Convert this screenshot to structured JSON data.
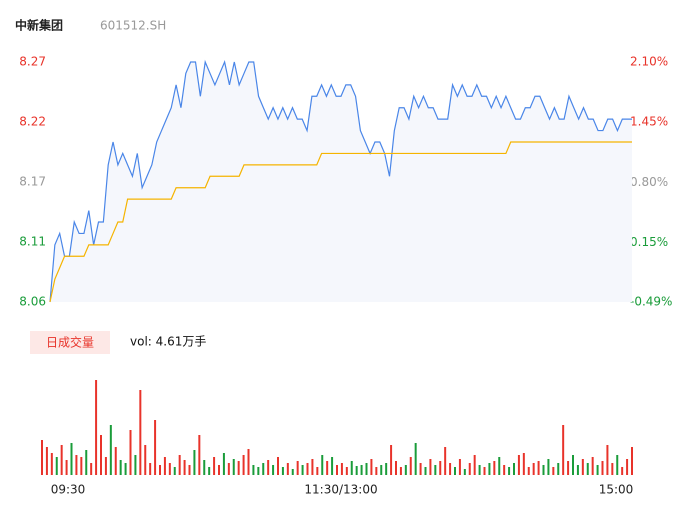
{
  "chart_data": [
    {
      "type": "line",
      "title": "中新集团",
      "subtitle": "601512.SH",
      "xlim": [
        0,
        240
      ],
      "xticks": [
        {
          "value": 0,
          "label": "09:30"
        },
        {
          "value": 120,
          "label": "11:30/13:00"
        },
        {
          "value": 240,
          "label": "15:00"
        }
      ],
      "ylim": [
        8.06,
        8.27
      ],
      "yticks": [
        8.06,
        {
          "value": 8.1125,
          "label": "8.11"
        },
        {
          "value": 8.165,
          "label": "8.17"
        },
        {
          "value": 8.2175,
          "label": "8.22"
        },
        8.27
      ],
      "ytick_colors": [
        "#1a9c3a",
        "#1a9c3a",
        "#999999",
        "#e8332a",
        "#e8332a"
      ],
      "y2lim": [
        -0.49,
        2.1
      ],
      "y2ticks": [
        {
          "value": -0.49,
          "label": "-0.49%"
        },
        {
          "value": 0.15,
          "label": "0.15%"
        },
        {
          "value": 0.8,
          "label": "0.80%"
        },
        {
          "value": 1.45,
          "label": "1.45%"
        },
        {
          "value": 2.1,
          "label": "2.10%"
        }
      ],
      "x": [
        0,
        2,
        4,
        6,
        8,
        10,
        12,
        14,
        16,
        18,
        20,
        22,
        24,
        26,
        28,
        30,
        32,
        34,
        36,
        38,
        40,
        42,
        44,
        46,
        48,
        50,
        52,
        54,
        56,
        58,
        60,
        62,
        64,
        66,
        68,
        70,
        72,
        74,
        76,
        78,
        80,
        82,
        84,
        86,
        88,
        90,
        92,
        94,
        96,
        98,
        100,
        102,
        104,
        106,
        108,
        110,
        112,
        114,
        116,
        118,
        120,
        122,
        124,
        126,
        128,
        130,
        132,
        134,
        136,
        138,
        140,
        142,
        144,
        146,
        148,
        150,
        152,
        154,
        156,
        158,
        160,
        162,
        164,
        166,
        168,
        170,
        172,
        174,
        176,
        178,
        180,
        182,
        184,
        186,
        188,
        190,
        192,
        194,
        196,
        198,
        200,
        202,
        204,
        206,
        208,
        210,
        212,
        214,
        216,
        218,
        220,
        222,
        224,
        226,
        228,
        230,
        232,
        234,
        236,
        238,
        240
      ],
      "series": [
        {
          "name": "price",
          "color": "#4a86e8",
          "values": [
            8.06,
            8.11,
            8.12,
            8.1,
            8.1,
            8.13,
            8.12,
            8.12,
            8.14,
            8.11,
            8.13,
            8.13,
            8.18,
            8.2,
            8.18,
            8.19,
            8.18,
            8.17,
            8.19,
            8.16,
            8.17,
            8.18,
            8.2,
            8.21,
            8.22,
            8.23,
            8.25,
            8.23,
            8.26,
            8.27,
            8.27,
            8.24,
            8.27,
            8.26,
            8.25,
            8.26,
            8.27,
            8.25,
            8.27,
            8.25,
            8.26,
            8.27,
            8.27,
            8.24,
            8.23,
            8.22,
            8.23,
            8.22,
            8.23,
            8.22,
            8.23,
            8.22,
            8.22,
            8.21,
            8.24,
            8.24,
            8.25,
            8.24,
            8.25,
            8.24,
            8.24,
            8.25,
            8.25,
            8.24,
            8.21,
            8.2,
            8.19,
            8.2,
            8.2,
            8.19,
            8.17,
            8.21,
            8.23,
            8.23,
            8.22,
            8.24,
            8.23,
            8.24,
            8.23,
            8.23,
            8.22,
            8.22,
            8.22,
            8.25,
            8.24,
            8.25,
            8.24,
            8.24,
            8.25,
            8.24,
            8.24,
            8.23,
            8.24,
            8.23,
            8.24,
            8.23,
            8.22,
            8.22,
            8.23,
            8.23,
            8.24,
            8.24,
            8.23,
            8.22,
            8.23,
            8.22,
            8.22,
            8.24,
            8.23,
            8.22,
            8.23,
            8.22,
            8.22,
            8.21,
            8.21,
            8.22,
            8.22,
            8.21,
            8.22,
            8.22,
            8.22
          ]
        },
        {
          "name": "average",
          "color": "#f5b400",
          "values": [
            8.06,
            8.08,
            8.09,
            8.1,
            8.1,
            8.1,
            8.1,
            8.1,
            8.11,
            8.11,
            8.11,
            8.11,
            8.11,
            8.12,
            8.13,
            8.13,
            8.15,
            8.15,
            8.15,
            8.15,
            8.15,
            8.15,
            8.15,
            8.15,
            8.15,
            8.15,
            8.16,
            8.16,
            8.16,
            8.16,
            8.16,
            8.16,
            8.16,
            8.17,
            8.17,
            8.17,
            8.17,
            8.17,
            8.17,
            8.17,
            8.18,
            8.18,
            8.18,
            8.18,
            8.18,
            8.18,
            8.18,
            8.18,
            8.18,
            8.18,
            8.18,
            8.18,
            8.18,
            8.18,
            8.18,
            8.18,
            8.19,
            8.19,
            8.19,
            8.19,
            8.19,
            8.19,
            8.19,
            8.19,
            8.19,
            8.19,
            8.19,
            8.19,
            8.19,
            8.19,
            8.19,
            8.19,
            8.19,
            8.19,
            8.19,
            8.19,
            8.19,
            8.19,
            8.19,
            8.19,
            8.19,
            8.19,
            8.19,
            8.19,
            8.19,
            8.19,
            8.19,
            8.19,
            8.19,
            8.19,
            8.19,
            8.19,
            8.19,
            8.19,
            8.19,
            8.2,
            8.2,
            8.2,
            8.2,
            8.2,
            8.2,
            8.2,
            8.2,
            8.2,
            8.2,
            8.2,
            8.2,
            8.2,
            8.2,
            8.2,
            8.2,
            8.2,
            8.2,
            8.2,
            8.2,
            8.2,
            8.2,
            8.2,
            8.2,
            8.2,
            8.2
          ]
        }
      ]
    },
    {
      "type": "bar",
      "title": "日成交量",
      "annotation": "vol: 4.61万手",
      "up_color": "#e8332a",
      "down_color": "#1a9c3a",
      "ylim": [
        0,
        100
      ],
      "x": [
        0,
        2,
        4,
        6,
        8,
        10,
        12,
        14,
        16,
        18,
        20,
        22,
        24,
        26,
        28,
        30,
        32,
        34,
        36,
        38,
        40,
        42,
        44,
        46,
        48,
        50,
        52,
        54,
        56,
        58,
        60,
        62,
        64,
        66,
        68,
        70,
        72,
        74,
        76,
        78,
        80,
        82,
        84,
        86,
        88,
        90,
        92,
        94,
        96,
        98,
        100,
        102,
        104,
        106,
        108,
        110,
        112,
        114,
        116,
        118,
        120,
        122,
        124,
        126,
        128,
        130,
        132,
        134,
        136,
        138,
        140,
        142,
        144,
        146,
        148,
        150,
        152,
        154,
        156,
        158,
        160,
        162,
        164,
        166,
        168,
        170,
        172,
        174,
        176,
        178,
        180,
        182,
        184,
        186,
        188,
        190,
        192,
        194,
        196,
        198,
        200,
        202,
        204,
        206,
        208,
        210,
        212,
        214,
        216,
        218,
        220,
        222,
        224,
        226,
        228,
        230,
        232,
        234,
        236,
        238,
        240
      ],
      "values": [
        35,
        28,
        22,
        18,
        30,
        15,
        32,
        20,
        18,
        25,
        12,
        95,
        40,
        18,
        50,
        28,
        15,
        12,
        45,
        20,
        85,
        30,
        12,
        55,
        10,
        18,
        12,
        8,
        20,
        15,
        10,
        25,
        40,
        15,
        8,
        18,
        10,
        22,
        12,
        16,
        14,
        20,
        26,
        10,
        8,
        12,
        15,
        10,
        18,
        8,
        12,
        6,
        14,
        10,
        12,
        16,
        8,
        20,
        14,
        18,
        10,
        12,
        8,
        14,
        9,
        10,
        12,
        16,
        8,
        10,
        12,
        30,
        14,
        8,
        10,
        18,
        32,
        12,
        8,
        16,
        10,
        14,
        28,
        12,
        8,
        16,
        6,
        12,
        20,
        10,
        8,
        12,
        14,
        18,
        10,
        8,
        12,
        20,
        22,
        8,
        12,
        14,
        10,
        16,
        8,
        12,
        50,
        14,
        20,
        10,
        16,
        12,
        18,
        10,
        14,
        30,
        12,
        20,
        8,
        16,
        28
      ]
    }
  ]
}
